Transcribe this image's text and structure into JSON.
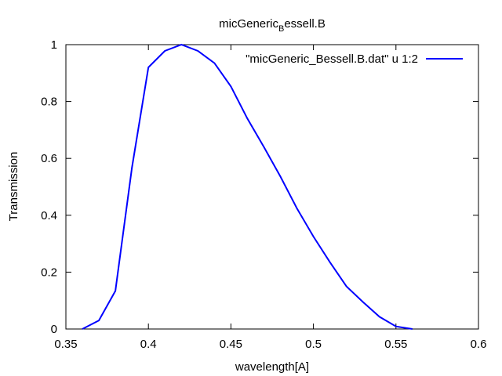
{
  "chart_data": {
    "type": "line",
    "title_main": "micGeneric",
    "title_sub": "B",
    "title_rest": "essell.B",
    "xlabel": "wavelength[A]",
    "ylabel": "Transmission",
    "xlim": [
      0.35,
      0.6
    ],
    "ylim": [
      0,
      1
    ],
    "xticks": [
      0.35,
      0.4,
      0.45,
      0.5,
      0.55,
      0.6
    ],
    "xtick_labels": [
      "0.35",
      "0.4",
      "0.45",
      "0.5",
      "0.55",
      "0.6"
    ],
    "yticks": [
      0,
      0.2,
      0.4,
      0.6,
      0.8,
      1
    ],
    "ytick_labels": [
      "0",
      "0.2",
      "0.4",
      "0.6",
      "0.8",
      "1"
    ],
    "grid": false,
    "legend_position": "top-right",
    "series": [
      {
        "name": "\"micGeneric_Bessell.B.dat\" u 1:2",
        "color": "#0000ff",
        "x": [
          0.36,
          0.37,
          0.38,
          0.39,
          0.4,
          0.41,
          0.42,
          0.43,
          0.44,
          0.45,
          0.46,
          0.47,
          0.48,
          0.49,
          0.5,
          0.51,
          0.52,
          0.53,
          0.54,
          0.55,
          0.56
        ],
        "y": [
          0.0,
          0.03,
          0.134,
          0.567,
          0.92,
          0.978,
          1.0,
          0.978,
          0.935,
          0.853,
          0.74,
          0.64,
          0.536,
          0.424,
          0.325,
          0.235,
          0.15,
          0.095,
          0.043,
          0.009,
          0.0
        ]
      }
    ]
  }
}
